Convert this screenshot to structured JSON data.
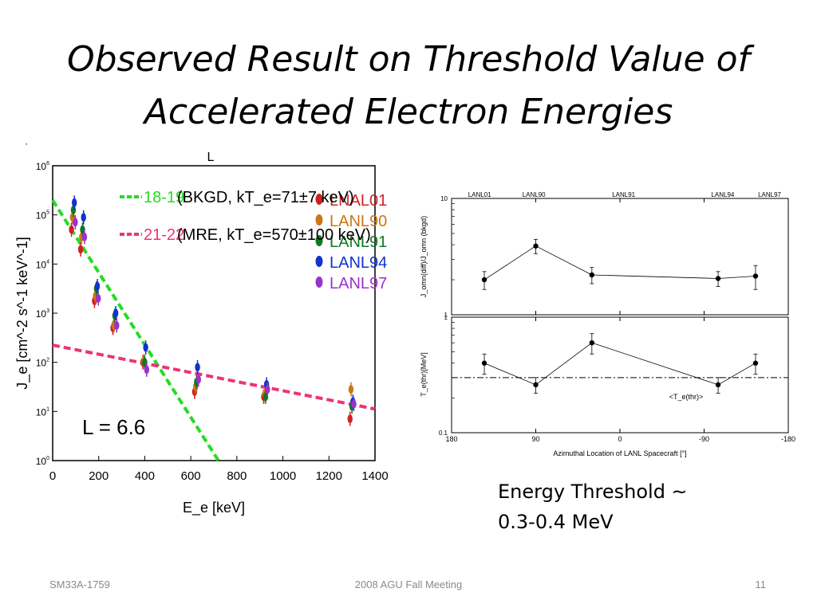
{
  "slide": {
    "title_line1": "Observed Result on Threshold Value of",
    "title_line2": "Accelerated Electron Energies",
    "note_line1": "Energy Threshold ~",
    "note_line2": "0.3-0.4 MeV",
    "footer_left": "SM33A-1759",
    "footer_center": "2008 AGU Fall Meeting",
    "footer_right": "11"
  },
  "chart_data": [
    {
      "type": "scatter",
      "top_label": "L",
      "xlabel": "E_e [keV]",
      "ylabel": "J_e [cm^-2 s^-1 keV^-1]",
      "xlim": [
        0,
        1400
      ],
      "ylim_exp": [
        0,
        6
      ],
      "log_y": true,
      "x_ticks": [
        "0",
        "200",
        "400",
        "600",
        "800",
        "1000",
        "1200",
        "1400"
      ],
      "annotation": "L = 6.6",
      "fit_lines": [
        {
          "label_range": "18-19",
          "label_text": "(BKGD, kT_e=71±7 keV)",
          "color": "#22dd22",
          "x": [
            0,
            720
          ],
          "log10y": [
            5.3,
            0.0
          ]
        },
        {
          "label_range": "21-22",
          "label_text": "(MRE, kT_e=570±100 keV)",
          "color": "#ee3377",
          "x": [
            0,
            1400
          ],
          "log10y": [
            2.35,
            1.05
          ]
        }
      ],
      "series": [
        {
          "name": "LNAL01",
          "color": "#cc2222",
          "x": [
            90,
            130,
            190,
            270,
            400,
            625,
            925,
            1300
          ],
          "log10y": [
            4.7,
            4.3,
            3.25,
            2.7,
            2.0,
            1.4,
            1.3,
            0.85
          ]
        },
        {
          "name": "LANL90",
          "color": "#cc7711",
          "x": [
            90,
            130,
            190,
            270,
            400,
            625,
            925,
            1300
          ],
          "log10y": [
            4.95,
            4.55,
            3.35,
            2.75,
            2.02,
            1.5,
            1.35,
            1.45
          ]
        },
        {
          "name": "LANL91",
          "color": "#117722",
          "x": [
            90,
            130,
            190,
            270,
            400,
            625,
            925,
            1300
          ],
          "log10y": [
            5.1,
            4.7,
            3.5,
            2.95,
            2.0,
            1.6,
            1.3,
            1.1
          ]
        },
        {
          "name": "LANL94",
          "color": "#1133cc",
          "x": [
            90,
            130,
            190,
            270,
            400,
            625,
            925,
            1300
          ],
          "log10y": [
            5.25,
            4.95,
            3.55,
            3.0,
            2.3,
            1.9,
            1.55,
            1.2
          ]
        },
        {
          "name": "LANL97",
          "color": "#9933cc",
          "x": [
            90,
            130,
            190,
            270,
            400,
            625,
            925,
            1300
          ],
          "log10y": [
            4.85,
            4.55,
            3.3,
            2.75,
            1.85,
            1.65,
            1.45,
            1.15
          ]
        }
      ]
    },
    {
      "type": "line",
      "xlabel": "Azimuthal Location of LANL Spacecraft [°]",
      "x_ticks": [
        "180",
        "90",
        "0",
        "-90",
        "-180"
      ],
      "xlim": [
        180,
        -180
      ],
      "spacecraft_labels": [
        {
          "name": "LANL01",
          "x": 150
        },
        {
          "name": "LANL90",
          "x": 92
        },
        {
          "name": "LANL91",
          "x": -4
        },
        {
          "name": "LANL94",
          "x": -110
        },
        {
          "name": "LANL97",
          "x": -160
        }
      ],
      "top": {
        "ylabel": "J_omn(diff)/J_omn (bkgd)",
        "log_y": true,
        "ylim": [
          1,
          10
        ],
        "y_ticks": [
          "10",
          "1"
        ],
        "x": [
          145,
          90,
          30,
          -105,
          -145
        ],
        "y": [
          2.0,
          3.9,
          2.2,
          2.05,
          2.15
        ],
        "err": [
          0.35,
          0.55,
          0.35,
          0.3,
          0.5
        ]
      },
      "bottom": {
        "ylabel": "T_e(thr)[MeV]",
        "log_y": true,
        "ylim": [
          0.1,
          1
        ],
        "y_ticks": [
          "1",
          "0.1"
        ],
        "x": [
          145,
          90,
          30,
          -105,
          -145
        ],
        "y": [
          0.4,
          0.26,
          0.6,
          0.26,
          0.4
        ],
        "err": [
          0.08,
          0.04,
          0.12,
          0.04,
          0.08
        ],
        "reference_value": 0.3,
        "reference_label": "<T_e(thr)>"
      }
    }
  ]
}
